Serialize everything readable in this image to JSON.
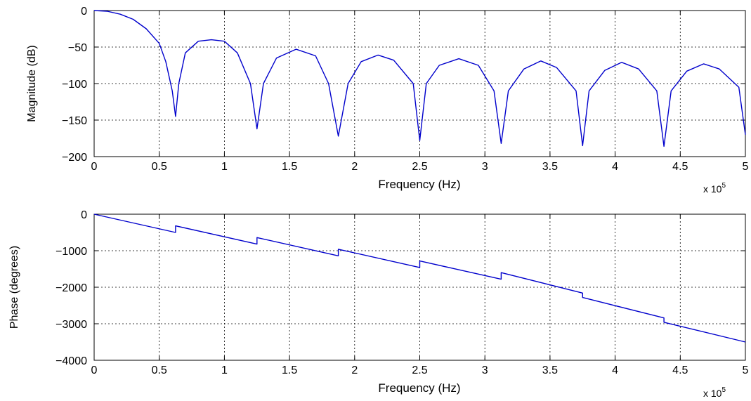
{
  "colors": {
    "series": "#0000cc",
    "axes": "#000000",
    "background": "#ffffff"
  },
  "chart_data": [
    {
      "type": "line",
      "title": "",
      "xlabel": "Frequency (Hz)",
      "ylabel": "Magnitude (dB)",
      "x_multiplier": "x 10",
      "x_multiplier_exponent": "5",
      "xlim": [
        0,
        500000
      ],
      "ylim": [
        -200,
        0
      ],
      "grid": true,
      "xticks": [
        0,
        50000,
        100000,
        150000,
        200000,
        250000,
        300000,
        350000,
        400000,
        450000,
        500000
      ],
      "xtick_labels": [
        "0",
        "0.5",
        "1",
        "1.5",
        "2",
        "2.5",
        "3",
        "3.5",
        "4",
        "4.5",
        "5"
      ],
      "yticks": [
        0,
        -50,
        -100,
        -150,
        -200
      ],
      "ytick_labels": [
        "0",
        "−50",
        "−100",
        "−150",
        "−200"
      ],
      "series": [
        {
          "x": [
            0,
            10000,
            20000,
            30000,
            40000,
            50000,
            55000,
            60000,
            62500,
            65000,
            70000,
            80000,
            90000,
            100000,
            110000,
            120000,
            125000,
            130000,
            140000,
            155000,
            170000,
            180000,
            187500,
            195000,
            205000,
            218000,
            230000,
            245000,
            250000,
            255000,
            265000,
            280000,
            295000,
            307000,
            312500,
            318000,
            330000,
            343000,
            355000,
            370000,
            375000,
            380000,
            392000,
            405000,
            418000,
            432000,
            437500,
            443000,
            455000,
            468000,
            480000,
            495000,
            500000
          ],
          "y": [
            0,
            -1,
            -5,
            -12,
            -25,
            -45,
            -70,
            -110,
            -145,
            -100,
            -58,
            -42,
            -40,
            -42,
            -58,
            -100,
            -162,
            -100,
            -65,
            -53,
            -62,
            -100,
            -172,
            -100,
            -70,
            -61,
            -68,
            -100,
            -178,
            -100,
            -75,
            -66,
            -75,
            -110,
            -182,
            -110,
            -80,
            -69,
            -78,
            -110,
            -185,
            -110,
            -82,
            -71,
            -80,
            -110,
            -186,
            -110,
            -83,
            -73,
            -80,
            -105,
            -170
          ]
        }
      ]
    },
    {
      "type": "line",
      "title": "",
      "xlabel": "Frequency (Hz)",
      "ylabel": "Phase (degrees)",
      "x_multiplier": "x 10",
      "x_multiplier_exponent": "5",
      "xlim": [
        0,
        500000
      ],
      "ylim": [
        -4000,
        0
      ],
      "grid": true,
      "xticks": [
        0,
        50000,
        100000,
        150000,
        200000,
        250000,
        300000,
        350000,
        400000,
        450000,
        500000
      ],
      "xtick_labels": [
        "0",
        "0.5",
        "1",
        "1.5",
        "2",
        "2.5",
        "3",
        "3.5",
        "4",
        "4.5",
        "5"
      ],
      "yticks": [
        0,
        -1000,
        -2000,
        -3000,
        -4000
      ],
      "ytick_labels": [
        "0",
        "−1000",
        "−2000",
        "−3000",
        "−4000"
      ],
      "series": [
        {
          "x": [
            0,
            62500,
            62500,
            125000,
            125000,
            187500,
            187500,
            250000,
            250000,
            312500,
            312500,
            375000,
            375000,
            437500,
            437500,
            500000
          ],
          "y": [
            0,
            -500,
            -320,
            -820,
            -640,
            -1140,
            -960,
            -1460,
            -1280,
            -1780,
            -1600,
            -2160,
            -2280,
            -2840,
            -2960,
            -3500
          ]
        }
      ]
    }
  ]
}
